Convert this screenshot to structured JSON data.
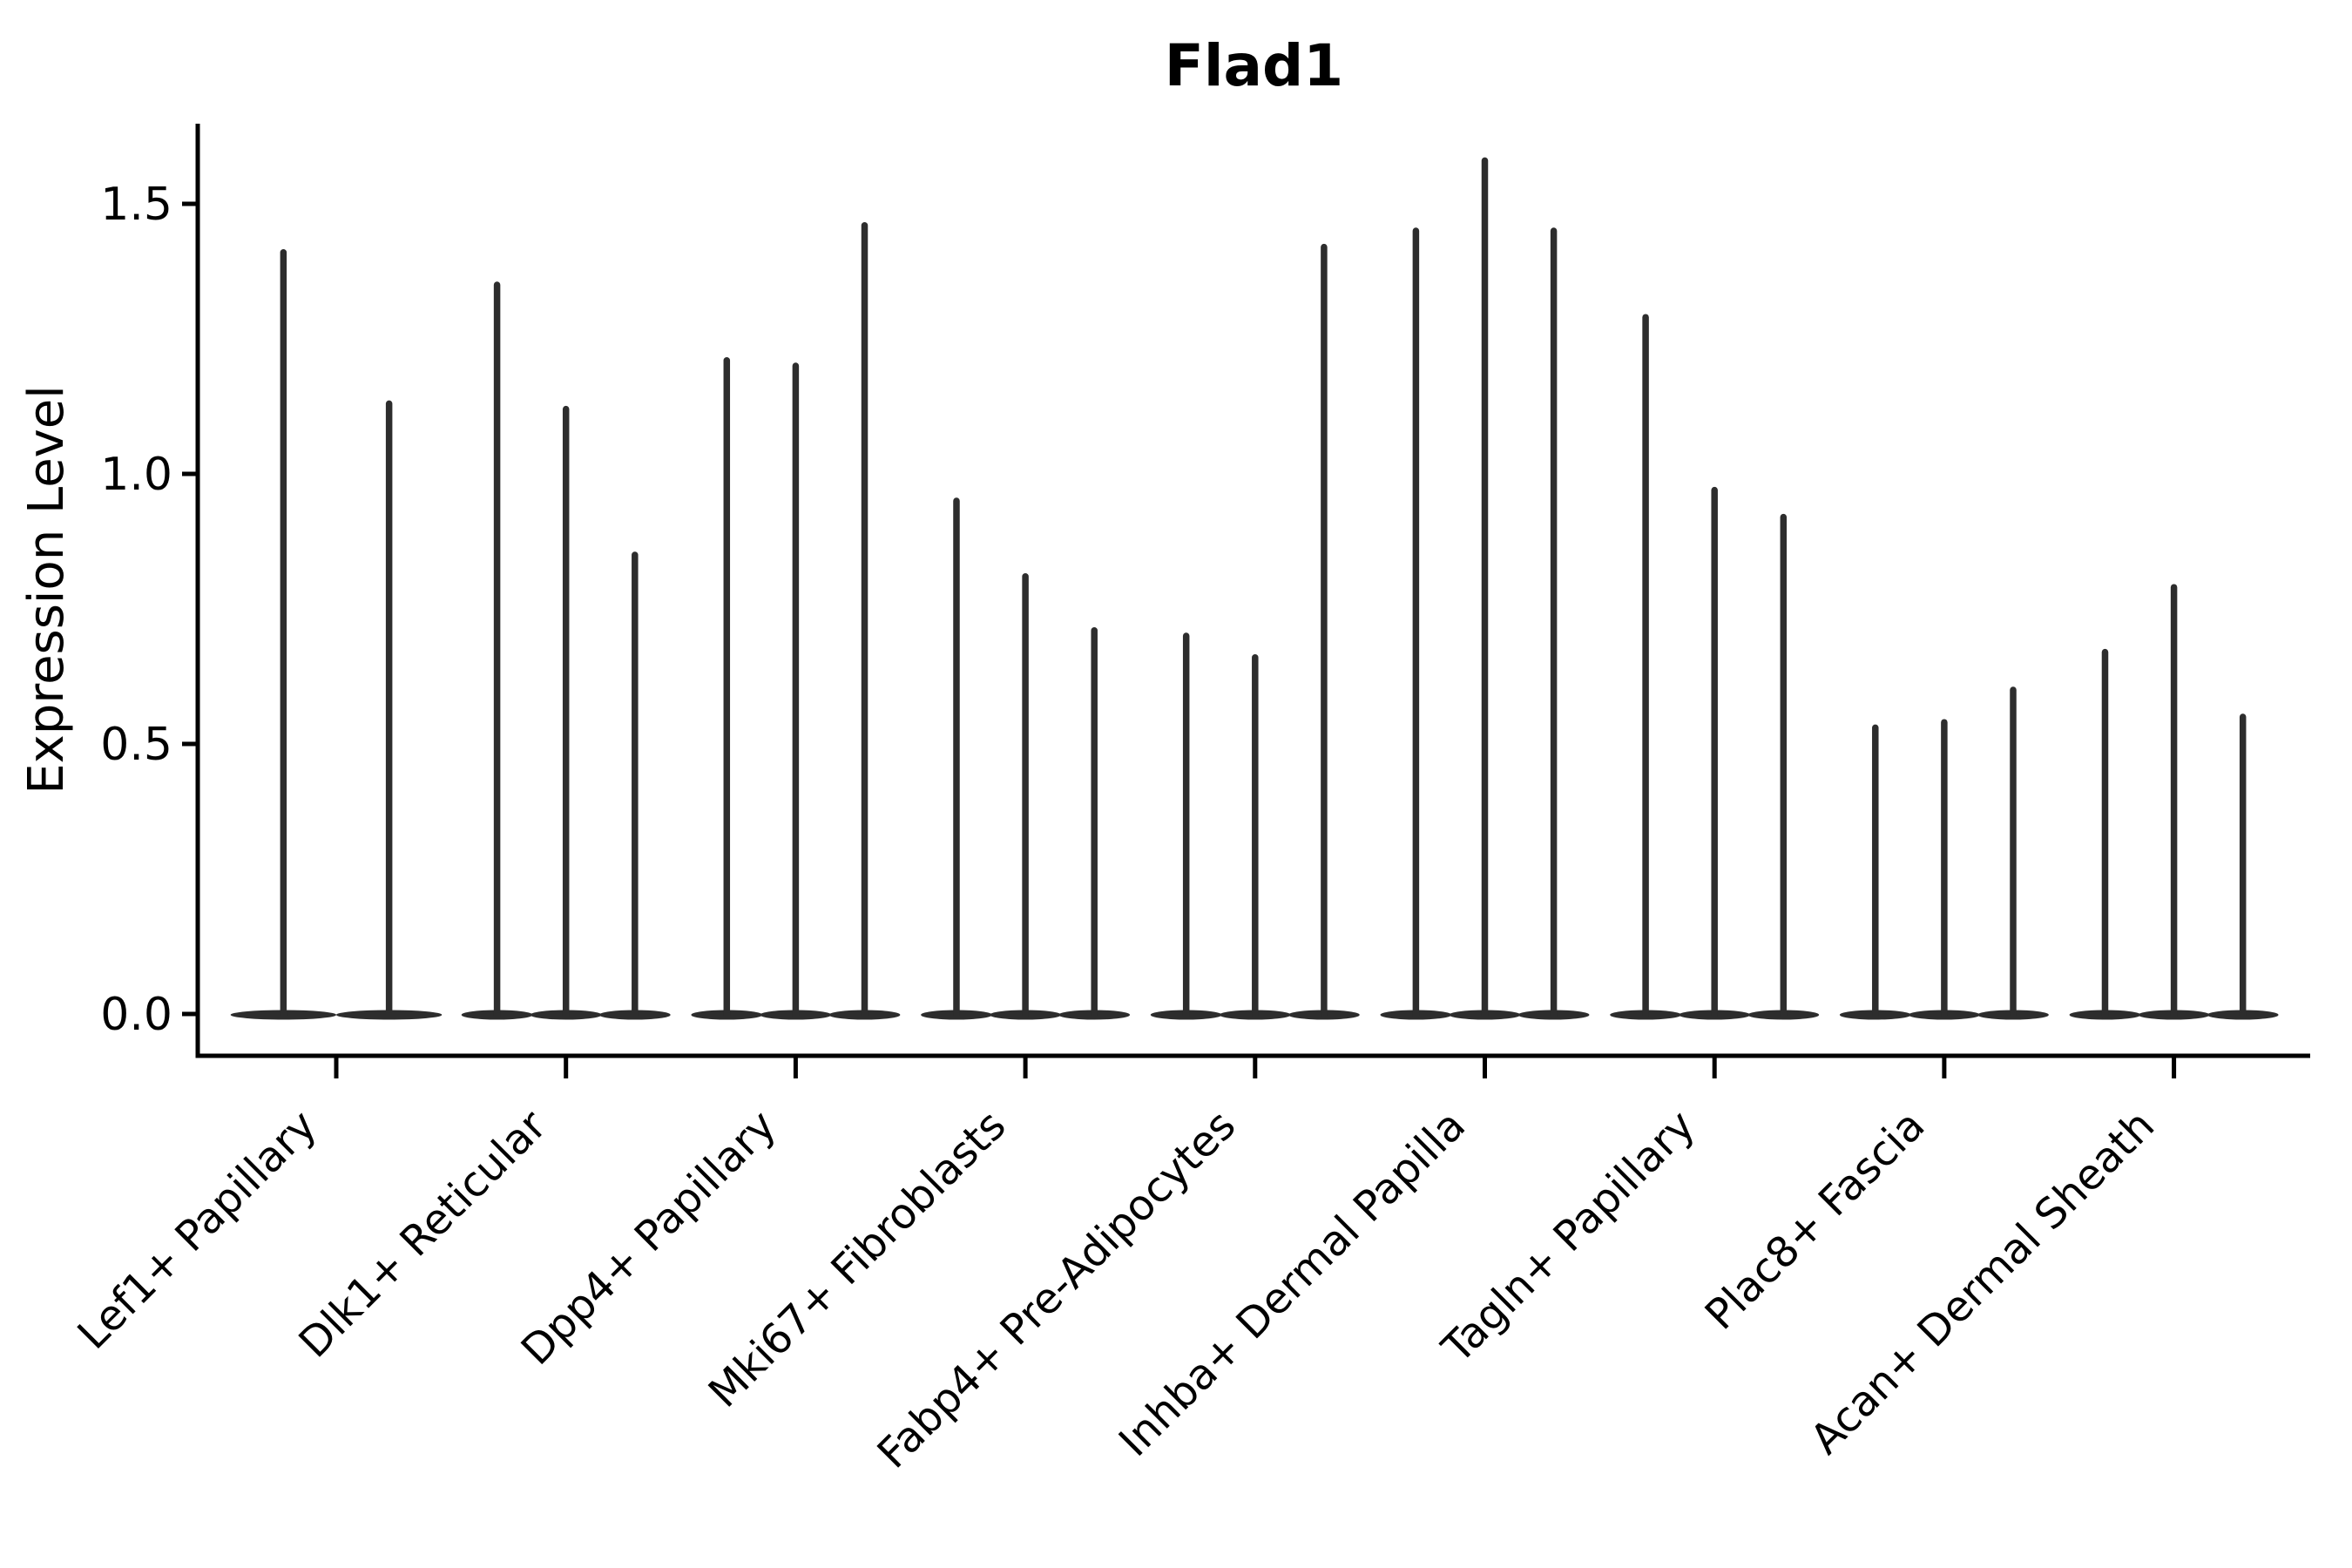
{
  "figure": {
    "background": "#ffffff"
  },
  "chart_data": {
    "type": "violin",
    "title": "Flad1",
    "xlabel": "",
    "ylabel": "Expression Level",
    "ytick_labels": [
      "0.0",
      "0.5",
      "1.0",
      "1.5"
    ],
    "ytick_values": [
      0.0,
      0.5,
      1.0,
      1.5
    ],
    "ylim": [
      -0.08,
      1.65
    ],
    "grid": false,
    "legend": "none",
    "colors": {
      "violin": "#2d2d2d",
      "axis": "#000000",
      "text": "#000000"
    },
    "categories": [
      "Lef1+ Papillary",
      "Dlk1+ Reticular",
      "Dpp4+ Papillary",
      "Mki67+ Fibroblasts",
      "Fabp4+ Pre-Adipocytes",
      "Inhba+ Dermal Papilla",
      "Tagln+ Papillary",
      "Plac8+ Fascia",
      "Acan+ Dermal Sheath"
    ],
    "groups": [
      {
        "category": "Lef1+ Papillary",
        "violins": [
          {
            "offset": -0.23,
            "width": 0.46,
            "max": 1.41
          },
          {
            "offset": 0.23,
            "width": 0.46,
            "max": 1.13
          }
        ]
      },
      {
        "category": "Dlk1+ Reticular",
        "violins": [
          {
            "offset": -0.3,
            "width": 0.31,
            "max": 1.35
          },
          {
            "offset": 0.0,
            "width": 0.31,
            "max": 1.12
          },
          {
            "offset": 0.3,
            "width": 0.31,
            "max": 0.85
          }
        ]
      },
      {
        "category": "Dpp4+ Papillary",
        "violins": [
          {
            "offset": -0.3,
            "width": 0.31,
            "max": 1.21
          },
          {
            "offset": 0.0,
            "width": 0.31,
            "max": 1.2
          },
          {
            "offset": 0.3,
            "width": 0.31,
            "max": 1.46
          }
        ]
      },
      {
        "category": "Mki67+ Fibroblasts",
        "violins": [
          {
            "offset": -0.3,
            "width": 0.31,
            "max": 0.95
          },
          {
            "offset": 0.0,
            "width": 0.31,
            "max": 0.81
          },
          {
            "offset": 0.3,
            "width": 0.31,
            "max": 0.71
          }
        ]
      },
      {
        "category": "Fabp4+ Pre-Adipocytes",
        "violins": [
          {
            "offset": -0.3,
            "width": 0.31,
            "max": 0.7
          },
          {
            "offset": 0.0,
            "width": 0.31,
            "max": 0.66
          },
          {
            "offset": 0.3,
            "width": 0.31,
            "max": 1.42
          }
        ]
      },
      {
        "category": "Inhba+ Dermal Papilla",
        "violins": [
          {
            "offset": -0.3,
            "width": 0.31,
            "max": 1.45
          },
          {
            "offset": 0.0,
            "width": 0.31,
            "max": 1.58
          },
          {
            "offset": 0.3,
            "width": 0.31,
            "max": 1.45
          }
        ]
      },
      {
        "category": "Tagln+ Papillary",
        "violins": [
          {
            "offset": -0.3,
            "width": 0.31,
            "max": 1.29
          },
          {
            "offset": 0.0,
            "width": 0.31,
            "max": 0.97
          },
          {
            "offset": 0.3,
            "width": 0.31,
            "max": 0.92
          }
        ]
      },
      {
        "category": "Plac8+ Fascia",
        "violins": [
          {
            "offset": -0.3,
            "width": 0.31,
            "max": 0.53
          },
          {
            "offset": 0.0,
            "width": 0.31,
            "max": 0.54
          },
          {
            "offset": 0.3,
            "width": 0.31,
            "max": 0.6
          }
        ]
      },
      {
        "category": "Acan+ Dermal Sheath",
        "violins": [
          {
            "offset": -0.3,
            "width": 0.31,
            "max": 0.67
          },
          {
            "offset": 0.0,
            "width": 0.31,
            "max": 0.79
          },
          {
            "offset": 0.3,
            "width": 0.31,
            "max": 0.55
          }
        ]
      }
    ]
  }
}
